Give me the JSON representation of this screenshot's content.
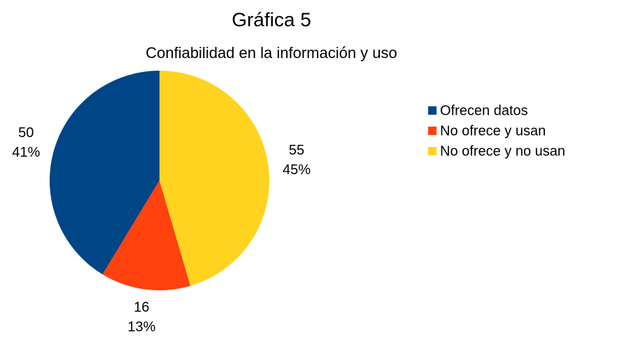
{
  "chart_data": {
    "type": "pie",
    "title": "Gráfica 5",
    "subtitle": "Confiabilidad en la información y uso",
    "categories": [
      "Ofrecen datos",
      "No ofrece y usan",
      "No ofrece y no usan"
    ],
    "values": [
      50,
      16,
      55
    ],
    "percent_labels": [
      "41%",
      "13%",
      "45%"
    ],
    "colors": [
      "#004586",
      "#ff420e",
      "#ffd320"
    ],
    "legend": "right"
  }
}
